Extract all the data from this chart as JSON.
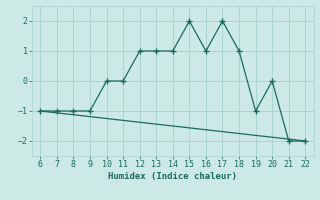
{
  "xlabel": "Humidex (Indice chaleur)",
  "x_line1": [
    6,
    7,
    8,
    9,
    10,
    11,
    12,
    13,
    14,
    15,
    16,
    17,
    18,
    19,
    20,
    21,
    22
  ],
  "y_line1": [
    -1,
    -1,
    -1,
    -1,
    0,
    0,
    1,
    1,
    1,
    2,
    1,
    2,
    1,
    -1,
    0,
    -2,
    -2
  ],
  "x_line2": [
    6,
    7,
    8,
    9,
    10,
    11,
    12,
    13,
    14,
    15,
    16,
    17,
    18,
    19,
    20,
    21,
    22
  ],
  "y_line2": [
    -1.0,
    -1.0625,
    -1.125,
    -1.1875,
    -1.25,
    -1.3125,
    -1.375,
    -1.4375,
    -1.5,
    -1.5625,
    -1.625,
    -1.6875,
    -1.75,
    -1.8125,
    -1.875,
    -1.9375,
    -2.0
  ],
  "line_color": "#1a6b5e",
  "bg_color": "#cce9e5",
  "grid_color": "#aad4cf",
  "xlim": [
    5.5,
    22.5
  ],
  "ylim": [
    -2.5,
    2.5
  ],
  "xticks": [
    6,
    7,
    8,
    9,
    10,
    11,
    12,
    13,
    14,
    15,
    16,
    17,
    18,
    19,
    20,
    21,
    22
  ],
  "yticks": [
    -2,
    -1,
    0,
    1,
    2
  ],
  "marker": "+"
}
